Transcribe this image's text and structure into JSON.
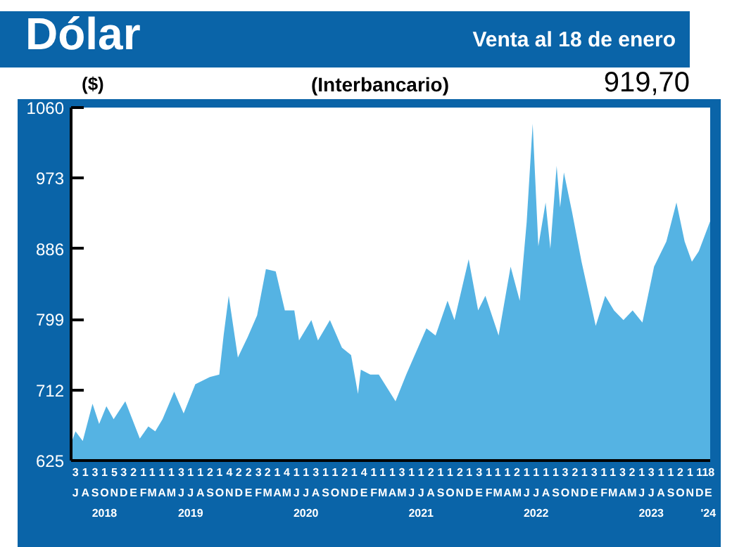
{
  "chart_data": {
    "type": "area",
    "title": "Dólar",
    "subtitle": "Venta al 18 de enero",
    "annotations": [
      "($)",
      "(Interbancario)",
      "919,70"
    ],
    "xlim": [
      "2018-07-01",
      "2024-01-18"
    ],
    "ylim": [
      625,
      1060
    ],
    "yticks": [
      625,
      712,
      799,
      886,
      973,
      1060
    ],
    "grid": false,
    "xticks": [
      {
        "value": "2018-07-15",
        "label": "3\nJ"
      },
      {
        "value": "2018-08-15",
        "label": "1\nA"
      },
      {
        "value": "2018-09-15",
        "label": "3\nS"
      },
      {
        "value": "2018-10-15",
        "label": "1\nO\n2018"
      },
      {
        "value": "2018-11-15",
        "label": "5\nN"
      },
      {
        "value": "2018-12-15",
        "label": "3\nD"
      },
      {
        "value": "2019-01-15",
        "label": "2\nE"
      },
      {
        "value": "2019-02-15",
        "label": "1\nF"
      },
      {
        "value": "2019-03-15",
        "label": "1\nM"
      },
      {
        "value": "2019-04-15",
        "label": "1\nA"
      },
      {
        "value": "2019-05-15",
        "label": "1\nM"
      },
      {
        "value": "2019-06-15",
        "label": "3\nJ"
      },
      {
        "value": "2019-07-15",
        "label": "1\nJ\n2019"
      },
      {
        "value": "2019-08-15",
        "label": "1\nA"
      },
      {
        "value": "2019-09-15",
        "label": "2\nS"
      },
      {
        "value": "2019-10-15",
        "label": "1\nO"
      },
      {
        "value": "2019-11-15",
        "label": "4\nN"
      },
      {
        "value": "2019-12-15",
        "label": "2\nD"
      },
      {
        "value": "2020-01-15",
        "label": "2\nE"
      },
      {
        "value": "2020-02-15",
        "label": "3\nF"
      },
      {
        "value": "2020-03-15",
        "label": "2\nM"
      },
      {
        "value": "2020-04-15",
        "label": "1\nA"
      },
      {
        "value": "2020-05-15",
        "label": "4\nM"
      },
      {
        "value": "2020-06-15",
        "label": "1\nJ"
      },
      {
        "value": "2020-07-15",
        "label": "1\nJ\n2020"
      },
      {
        "value": "2020-08-15",
        "label": "3\nA"
      },
      {
        "value": "2020-09-15",
        "label": "1\nS"
      },
      {
        "value": "2020-10-15",
        "label": "1\nO"
      },
      {
        "value": "2020-11-15",
        "label": "2\nN"
      },
      {
        "value": "2020-12-15",
        "label": "1\nD"
      },
      {
        "value": "2021-01-15",
        "label": "4\nE"
      },
      {
        "value": "2021-02-15",
        "label": "1\nF"
      },
      {
        "value": "2021-03-15",
        "label": "1\nM"
      },
      {
        "value": "2021-04-15",
        "label": "1\nA"
      },
      {
        "value": "2021-05-15",
        "label": "3\nM"
      },
      {
        "value": "2021-06-15",
        "label": "1\nJ"
      },
      {
        "value": "2021-07-15",
        "label": "1\nJ\n2021"
      },
      {
        "value": "2021-08-15",
        "label": "2\nA"
      },
      {
        "value": "2021-09-15",
        "label": "1\nS"
      },
      {
        "value": "2021-10-15",
        "label": "1\nO"
      },
      {
        "value": "2021-11-15",
        "label": "2\nN"
      },
      {
        "value": "2021-12-15",
        "label": "1\nD"
      },
      {
        "value": "2022-01-15",
        "label": "3\nE"
      },
      {
        "value": "2022-02-15",
        "label": "1\nF"
      },
      {
        "value": "2022-03-15",
        "label": "1\nM"
      },
      {
        "value": "2022-04-15",
        "label": "1\nA"
      },
      {
        "value": "2022-05-15",
        "label": "2\nM"
      },
      {
        "value": "2022-06-15",
        "label": "1\nJ"
      },
      {
        "value": "2022-07-15",
        "label": "1\nJ\n2022"
      },
      {
        "value": "2022-08-15",
        "label": "1\nA"
      },
      {
        "value": "2022-09-15",
        "label": "1\nS"
      },
      {
        "value": "2022-10-15",
        "label": "3\nO"
      },
      {
        "value": "2022-11-15",
        "label": "2\nN"
      },
      {
        "value": "2022-12-15",
        "label": "1\nD"
      },
      {
        "value": "2023-01-15",
        "label": "3\nE"
      },
      {
        "value": "2023-02-15",
        "label": "1\nF"
      },
      {
        "value": "2023-03-15",
        "label": "1\nM"
      },
      {
        "value": "2023-04-15",
        "label": "3\nA"
      },
      {
        "value": "2023-05-15",
        "label": "2\nM"
      },
      {
        "value": "2023-06-15",
        "label": "1\nJ"
      },
      {
        "value": "2023-07-15",
        "label": "3\nJ\n2023"
      },
      {
        "value": "2023-08-15",
        "label": "1\nA"
      },
      {
        "value": "2023-09-15",
        "label": "1\nS"
      },
      {
        "value": "2023-10-15",
        "label": "2\nO"
      },
      {
        "value": "2023-11-15",
        "label": "1\nN"
      },
      {
        "value": "2023-12-15",
        "label": "1\nD"
      },
      {
        "value": "2024-01-12",
        "label": "18\nE\n'24"
      }
    ],
    "series": [
      {
        "color": "#55b3e3",
        "x": [
          "2018-07-01",
          "2018-07-15",
          "2018-08-07",
          "2018-09-07",
          "2018-09-28",
          "2018-10-21",
          "2018-11-13",
          "2018-12-20",
          "2019-02-04",
          "2019-03-03",
          "2019-03-25",
          "2019-04-17",
          "2019-05-24",
          "2019-06-23",
          "2019-07-30",
          "2019-09-14",
          "2019-10-14",
          "2019-10-28",
          "2019-11-13",
          "2019-12-12",
          "2020-01-12",
          "2020-02-11",
          "2020-03-10",
          "2020-04-10",
          "2020-05-09",
          "2020-06-08",
          "2020-06-23",
          "2020-08-01",
          "2020-08-22",
          "2020-09-29",
          "2020-11-06",
          "2020-12-05",
          "2020-12-27",
          "2021-01-05",
          "2021-02-04",
          "2021-03-03",
          "2021-04-25",
          "2021-05-29",
          "2021-08-01",
          "2021-08-30",
          "2021-10-07",
          "2021-10-29",
          "2021-12-13",
          "2022-01-12",
          "2022-02-04",
          "2022-03-18",
          "2022-04-25",
          "2022-05-24",
          "2022-06-15",
          "2022-07-04",
          "2022-07-22",
          "2022-08-14",
          "2022-08-29",
          "2022-09-18",
          "2022-09-29",
          "2022-10-11",
          "2022-11-06",
          "2022-12-06",
          "2023-01-20",
          "2023-02-19",
          "2023-03-19",
          "2023-04-18",
          "2023-05-17",
          "2023-06-17",
          "2023-07-24",
          "2023-09-01",
          "2023-10-03",
          "2023-10-29",
          "2023-11-21",
          "2023-12-13",
          "2024-01-18"
        ],
        "values": [
          646,
          661,
          649,
          695,
          670,
          692,
          676,
          698,
          652,
          667,
          661,
          676,
          710,
          683,
          719,
          728,
          731,
          780,
          828,
          752,
          777,
          804,
          861,
          858,
          810,
          810,
          773,
          798,
          773,
          798,
          764,
          755,
          707,
          737,
          731,
          731,
          698,
          731,
          788,
          779,
          822,
          798,
          873,
          810,
          828,
          779,
          864,
          822,
          919,
          1040,
          889,
          943,
          886,
          988,
          937,
          980,
          931,
          870,
          791,
          828,
          810,
          798,
          810,
          795,
          864,
          895,
          943,
          895,
          870,
          883,
          920
        ]
      }
    ]
  }
}
